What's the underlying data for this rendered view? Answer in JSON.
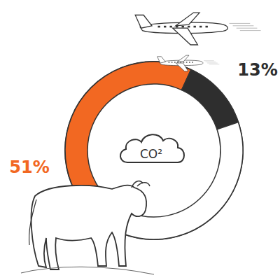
{
  "chart_data": {
    "type": "donut",
    "center_label": "CO²",
    "values": [
      51,
      13,
      36
    ],
    "value_labels": [
      "51%",
      "13%",
      null
    ],
    "colors": [
      "#f26822",
      "#2e2e2e",
      "#ffffff"
    ],
    "data_labels": true
  }
}
